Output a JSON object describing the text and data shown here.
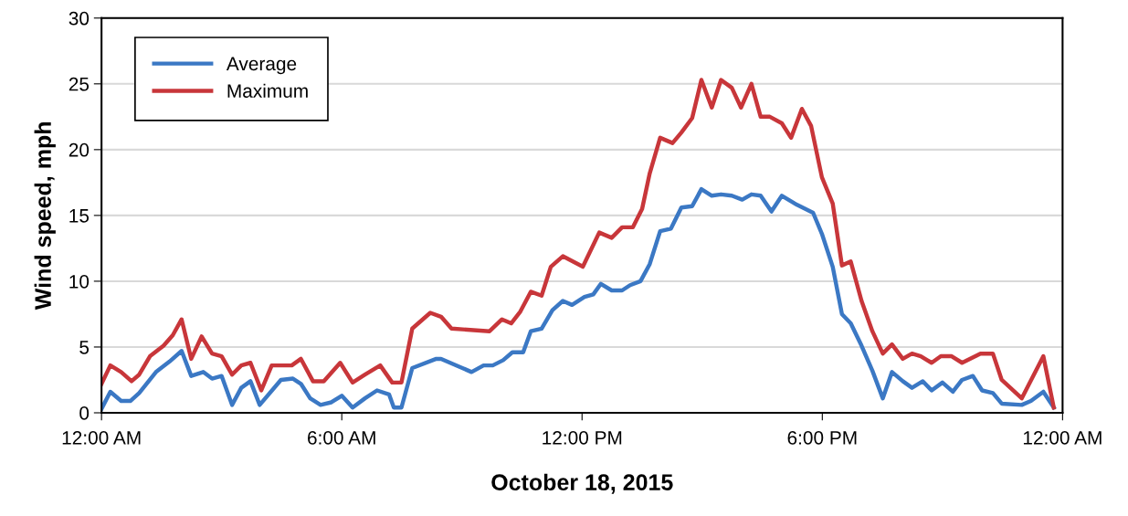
{
  "chart_data": {
    "type": "line",
    "xlabel": "October 18, 2015",
    "ylabel": "Wind speed, mph",
    "xlim": [
      0,
      24
    ],
    "xticks": [
      {
        "value": 0,
        "label": "12:00 AM"
      },
      {
        "value": 6,
        "label": "6:00 AM"
      },
      {
        "value": 12,
        "label": "12:00 PM"
      },
      {
        "value": 18,
        "label": "6:00 PM"
      },
      {
        "value": 24,
        "label": "12:00 AM"
      }
    ],
    "ylim": [
      0,
      30
    ],
    "yticks": [
      0,
      5,
      10,
      15,
      20,
      25,
      30
    ],
    "grid": "y",
    "legend": "top left",
    "marker": "none",
    "line_style": "solid",
    "series": [
      {
        "name": "Average",
        "color": "#3b78c4",
        "x": [
          0,
          0.22,
          0.49,
          0.72,
          0.94,
          1.36,
          1.7,
          2.0,
          2.24,
          2.54,
          2.76,
          3.0,
          3.26,
          3.49,
          3.72,
          3.95,
          4.48,
          4.78,
          4.98,
          5.21,
          5.47,
          5.74,
          6.0,
          6.27,
          6.58,
          6.88,
          7.18,
          7.3,
          7.49,
          7.76,
          8.36,
          8.48,
          9.24,
          9.54,
          9.77,
          10.03,
          10.26,
          10.53,
          10.72,
          10.99,
          11.26,
          11.52,
          11.75,
          12.06,
          12.28,
          12.47,
          12.74,
          13.0,
          13.2,
          13.46,
          13.69,
          13.95,
          14.22,
          14.48,
          14.75,
          14.98,
          15.24,
          15.47,
          15.74,
          16.0,
          16.23,
          16.46,
          16.73,
          16.99,
          17.37,
          17.77,
          17.99,
          18.26,
          18.49,
          18.71,
          18.98,
          19.25,
          19.51,
          19.74,
          20.01,
          20.24,
          20.51,
          20.73,
          21.0,
          21.26,
          21.49,
          21.76,
          21.99,
          22.26,
          22.48,
          22.98,
          23.21,
          23.52,
          23.78
        ],
        "values": [
          0.3,
          1.6,
          0.9,
          0.9,
          1.5,
          3.1,
          3.9,
          4.7,
          2.8,
          3.1,
          2.6,
          2.8,
          0.6,
          1.9,
          2.4,
          0.6,
          2.5,
          2.6,
          2.2,
          1.1,
          0.6,
          0.8,
          1.3,
          0.4,
          1.1,
          1.7,
          1.4,
          0.4,
          0.4,
          3.4,
          4.1,
          4.1,
          3.1,
          3.6,
          3.6,
          4.0,
          4.6,
          4.6,
          6.2,
          6.4,
          7.8,
          8.5,
          8.2,
          8.8,
          9.0,
          9.8,
          9.3,
          9.3,
          9.7,
          10.0,
          11.3,
          13.8,
          14.0,
          15.6,
          15.7,
          17.0,
          16.5,
          16.6,
          16.5,
          16.2,
          16.6,
          16.5,
          15.3,
          16.5,
          15.8,
          15.2,
          13.6,
          11.1,
          7.5,
          6.8,
          5.1,
          3.2,
          1.1,
          3.1,
          2.4,
          1.9,
          2.4,
          1.7,
          2.3,
          1.6,
          2.5,
          2.8,
          1.7,
          1.5,
          0.7,
          0.6,
          0.9,
          1.6,
          0.4
        ]
      },
      {
        "name": "Maximum",
        "color": "#c8363a",
        "x": [
          0,
          0.22,
          0.49,
          0.75,
          0.94,
          1.21,
          1.55,
          1.78,
          2.0,
          2.24,
          2.5,
          2.76,
          3.0,
          3.26,
          3.49,
          3.72,
          3.99,
          4.25,
          4.75,
          4.98,
          5.28,
          5.55,
          5.96,
          6.27,
          6.58,
          6.96,
          7.26,
          7.49,
          7.76,
          8.21,
          8.48,
          8.74,
          9.69,
          10.0,
          10.23,
          10.46,
          10.72,
          10.99,
          11.22,
          11.52,
          12.02,
          12.43,
          12.74,
          13.0,
          13.27,
          13.5,
          13.69,
          13.95,
          14.26,
          14.48,
          14.75,
          14.98,
          15.24,
          15.47,
          15.74,
          15.97,
          16.23,
          16.46,
          16.69,
          16.99,
          17.22,
          17.49,
          17.72,
          17.99,
          18.26,
          18.49,
          18.71,
          18.98,
          19.25,
          19.51,
          19.74,
          20.01,
          20.24,
          20.46,
          20.73,
          20.96,
          21.23,
          21.49,
          21.95,
          22.26,
          22.48,
          22.98,
          23.52,
          23.78
        ],
        "values": [
          2.2,
          3.6,
          3.1,
          2.4,
          2.9,
          4.3,
          5.1,
          5.9,
          7.1,
          4.1,
          5.8,
          4.5,
          4.3,
          2.9,
          3.6,
          3.8,
          1.7,
          3.6,
          3.6,
          4.1,
          2.4,
          2.4,
          3.8,
          2.3,
          2.9,
          3.6,
          2.3,
          2.3,
          6.4,
          7.6,
          7.3,
          6.4,
          6.2,
          7.1,
          6.8,
          7.7,
          9.2,
          8.9,
          11.1,
          11.9,
          11.1,
          13.7,
          13.3,
          14.1,
          14.1,
          15.5,
          18.2,
          20.9,
          20.5,
          21.3,
          22.4,
          25.3,
          23.2,
          25.3,
          24.7,
          23.2,
          25.0,
          22.5,
          22.5,
          22.0,
          20.9,
          23.1,
          21.8,
          17.9,
          15.9,
          11.2,
          11.5,
          8.5,
          6.2,
          4.5,
          5.2,
          4.1,
          4.5,
          4.3,
          3.8,
          4.3,
          4.3,
          3.8,
          4.5,
          4.5,
          2.5,
          1.1,
          4.3,
          0.4
        ]
      }
    ]
  }
}
